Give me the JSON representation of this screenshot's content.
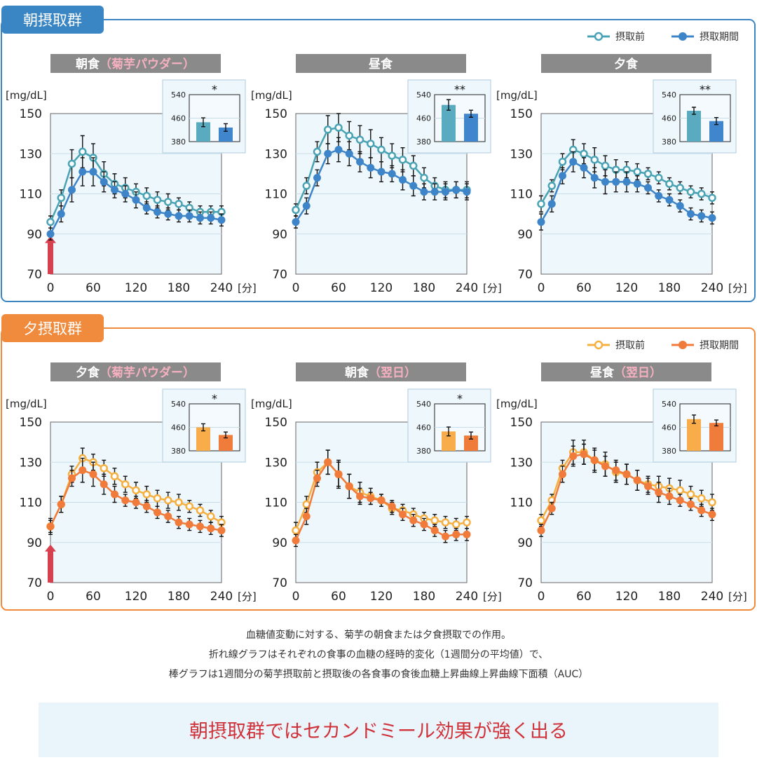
{
  "groups": [
    {
      "label": "朝摂取群",
      "color": "#3a86c4",
      "legend": {
        "before": "摂取前",
        "after": "摂取期間"
      },
      "colors": {
        "before": "#4aa3b4",
        "after": "#3d85c8",
        "bar_before": "#5aaac0",
        "bar_after": "#3f86cc"
      }
    },
    {
      "label": "夕摂取群",
      "color": "#f08a3c",
      "legend": {
        "before": "摂取前",
        "after": "摂取期間"
      },
      "colors": {
        "before": "#f5b041",
        "after": "#f07b3a",
        "bar_before": "#f9ad4a",
        "bar_after": "#f07c3c"
      }
    }
  ],
  "chart_data": [
    {
      "type": "line",
      "group": 0,
      "title": "朝食",
      "title_note": "（菊芋パウダー）",
      "intake_arrow": true,
      "ylabel": "[mg/dL]",
      "xunit": "[分]",
      "ylim": [
        70,
        150
      ],
      "yticks": [
        70,
        90,
        110,
        130,
        150
      ],
      "xlim": [
        0,
        240
      ],
      "xticks": [
        0,
        60,
        120,
        180,
        240
      ],
      "x": [
        0,
        15,
        30,
        45,
        60,
        75,
        90,
        105,
        120,
        135,
        150,
        165,
        180,
        195,
        210,
        225,
        240
      ],
      "series": [
        {
          "name": "摂取前",
          "values": [
            96,
            108,
            125,
            131,
            128,
            120,
            115,
            113,
            111,
            109,
            107,
            106,
            105,
            103,
            101,
            101,
            101
          ],
          "error": [
            3,
            4,
            7,
            8,
            7,
            6,
            5,
            5,
            4,
            4,
            4,
            4,
            3,
            3,
            3,
            3,
            3
          ]
        },
        {
          "name": "摂取期間",
          "values": [
            90,
            100,
            112,
            121,
            121,
            116,
            112,
            110,
            107,
            103,
            101,
            100,
            99,
            99,
            98,
            98,
            97
          ],
          "error": [
            3,
            4,
            6,
            7,
            7,
            5,
            4,
            4,
            4,
            3,
            3,
            3,
            3,
            3,
            3,
            3,
            3
          ]
        }
      ],
      "auc": {
        "yticks": [
          380,
          460,
          540
        ],
        "ylim": [
          380,
          540
        ],
        "values": [
          446,
          428
        ],
        "error": [
          15,
          13
        ],
        "significance": "*"
      }
    },
    {
      "type": "line",
      "group": 0,
      "title": "昼食",
      "title_note": "",
      "intake_arrow": false,
      "ylabel": "[mg/dL]",
      "xunit": "[分]",
      "ylim": [
        70,
        150
      ],
      "yticks": [
        70,
        90,
        110,
        130,
        150
      ],
      "xlim": [
        0,
        240
      ],
      "xticks": [
        0,
        60,
        120,
        180,
        240
      ],
      "x": [
        0,
        15,
        30,
        45,
        60,
        75,
        90,
        105,
        120,
        135,
        150,
        165,
        180,
        195,
        210,
        225,
        240
      ],
      "series": [
        {
          "name": "摂取前",
          "values": [
            102,
            114,
            131,
            142,
            143,
            139,
            137,
            135,
            132,
            129,
            127,
            124,
            118,
            114,
            112,
            112,
            112
          ],
          "error": [
            3,
            4,
            5,
            7,
            7,
            7,
            7,
            7,
            6,
            6,
            6,
            5,
            5,
            4,
            4,
            4,
            4
          ]
        },
        {
          "name": "摂取期間",
          "values": [
            96,
            104,
            118,
            130,
            132,
            130,
            126,
            123,
            121,
            120,
            117,
            114,
            111,
            111,
            111,
            112,
            111
          ],
          "error": [
            3,
            4,
            4,
            5,
            6,
            6,
            5,
            5,
            5,
            4,
            5,
            5,
            4,
            4,
            4,
            4,
            4
          ]
        }
      ],
      "auc": {
        "yticks": [
          380,
          460,
          540
        ],
        "ylim": [
          380,
          540
        ],
        "values": [
          505,
          475
        ],
        "error": [
          18,
          12
        ],
        "significance": "**"
      }
    },
    {
      "type": "line",
      "group": 0,
      "title": "夕食",
      "title_note": "",
      "intake_arrow": false,
      "ylabel": "[mg/dL]",
      "xunit": "[分]",
      "ylim": [
        70,
        150
      ],
      "yticks": [
        70,
        90,
        110,
        130,
        150
      ],
      "xlim": [
        0,
        240
      ],
      "xticks": [
        0,
        60,
        120,
        180,
        240
      ],
      "x": [
        0,
        15,
        30,
        45,
        60,
        75,
        90,
        105,
        120,
        135,
        150,
        165,
        180,
        195,
        210,
        225,
        240
      ],
      "series": [
        {
          "name": "摂取前",
          "values": [
            105,
            114,
            126,
            132,
            130,
            127,
            124,
            122,
            122,
            121,
            120,
            118,
            115,
            113,
            111,
            110,
            108
          ],
          "error": [
            4,
            3,
            4,
            5,
            5,
            6,
            5,
            5,
            4,
            4,
            3,
            3,
            3,
            3,
            3,
            3,
            3
          ]
        },
        {
          "name": "摂取期間",
          "values": [
            96,
            105,
            119,
            126,
            123,
            118,
            116,
            116,
            116,
            115,
            113,
            109,
            107,
            104,
            100,
            99,
            98
          ],
          "error": [
            4,
            4,
            4,
            5,
            5,
            5,
            6,
            5,
            5,
            4,
            3,
            3,
            3,
            3,
            3,
            3,
            3
          ]
        }
      ],
      "auc": {
        "yticks": [
          380,
          460,
          540
        ],
        "ylim": [
          380,
          540
        ],
        "values": [
          485,
          450
        ],
        "error": [
          12,
          12
        ],
        "significance": "**"
      }
    },
    {
      "type": "line",
      "group": 1,
      "title": "夕食",
      "title_note": "（菊芋パウダー）",
      "intake_arrow": true,
      "ylabel": "[mg/dL]",
      "xunit": "[分]",
      "ylim": [
        70,
        150
      ],
      "yticks": [
        70,
        90,
        110,
        130,
        150
      ],
      "xlim": [
        0,
        240
      ],
      "xticks": [
        0,
        60,
        120,
        180,
        240
      ],
      "x": [
        0,
        15,
        30,
        45,
        60,
        75,
        90,
        105,
        120,
        135,
        150,
        165,
        180,
        195,
        210,
        225,
        240
      ],
      "series": [
        {
          "name": "摂取前",
          "values": [
            98,
            109,
            124,
            132,
            130,
            127,
            123,
            119,
            116,
            114,
            112,
            111,
            110,
            108,
            106,
            103,
            100
          ],
          "error": [
            4,
            4,
            4,
            5,
            4,
            4,
            4,
            4,
            4,
            4,
            4,
            4,
            4,
            3,
            3,
            3,
            3
          ]
        },
        {
          "name": "摂取期間",
          "values": [
            98,
            109,
            122,
            126,
            124,
            119,
            114,
            111,
            110,
            108,
            105,
            103,
            100,
            99,
            98,
            97,
            96
          ],
          "error": [
            3,
            4,
            4,
            6,
            6,
            5,
            4,
            3,
            3,
            3,
            3,
            3,
            3,
            3,
            3,
            3,
            3
          ]
        }
      ],
      "auc": {
        "yticks": [
          380,
          460,
          540
        ],
        "ylim": [
          380,
          540
        ],
        "values": [
          460,
          434
        ],
        "error": [
          12,
          10
        ],
        "significance": "*"
      }
    },
    {
      "type": "line",
      "group": 1,
      "title": "朝食",
      "title_note": "（翌日）",
      "intake_arrow": false,
      "ylabel": "[mg/dL]",
      "xunit": "[分]",
      "ylim": [
        70,
        150
      ],
      "yticks": [
        70,
        90,
        110,
        130,
        150
      ],
      "xlim": [
        0,
        240
      ],
      "xticks": [
        0,
        60,
        120,
        180,
        240
      ],
      "x": [
        0,
        15,
        30,
        45,
        60,
        75,
        90,
        105,
        120,
        135,
        150,
        165,
        180,
        195,
        210,
        225,
        240
      ],
      "series": [
        {
          "name": "摂取前",
          "values": [
            96,
            109,
            125,
            130,
            124,
            118,
            115,
            113,
            111,
            107,
            106,
            104,
            102,
            101,
            100,
            99,
            100
          ],
          "error": [
            4,
            4,
            5,
            6,
            6,
            6,
            5,
            4,
            3,
            3,
            3,
            3,
            3,
            3,
            3,
            3,
            3
          ]
        },
        {
          "name": "摂取期間",
          "values": [
            91,
            103,
            122,
            130,
            124,
            118,
            113,
            112,
            111,
            108,
            104,
            101,
            99,
            96,
            93,
            94,
            94
          ],
          "error": [
            3,
            4,
            4,
            6,
            7,
            6,
            4,
            3,
            3,
            3,
            3,
            3,
            3,
            3,
            3,
            3,
            3
          ]
        }
      ],
      "auc": {
        "yticks": [
          380,
          460,
          540
        ],
        "ylim": [
          380,
          540
        ],
        "values": [
          446,
          432
        ],
        "error": [
          15,
          12
        ],
        "significance": "*"
      }
    },
    {
      "type": "line",
      "group": 1,
      "title": "昼食",
      "title_note": "（翌日）",
      "intake_arrow": false,
      "ylabel": "[mg/dL]",
      "xunit": "[分]",
      "ylim": [
        70,
        150
      ],
      "yticks": [
        70,
        90,
        110,
        130,
        150
      ],
      "xlim": [
        0,
        240
      ],
      "xticks": [
        0,
        60,
        120,
        180,
        240
      ],
      "x": [
        0,
        15,
        30,
        45,
        60,
        75,
        90,
        105,
        120,
        135,
        150,
        165,
        180,
        195,
        210,
        225,
        240
      ],
      "series": [
        {
          "name": "摂取前",
          "values": [
            101,
            111,
            127,
            135,
            135,
            131,
            129,
            125,
            124,
            121,
            119,
            118,
            117,
            116,
            114,
            112,
            110
          ],
          "error": [
            3,
            3,
            4,
            6,
            6,
            6,
            6,
            5,
            5,
            5,
            4,
            5,
            5,
            5,
            4,
            4,
            4
          ]
        },
        {
          "name": "摂取期間",
          "values": [
            96,
            107,
            124,
            133,
            134,
            131,
            128,
            126,
            124,
            121,
            118,
            115,
            113,
            111,
            109,
            106,
            104
          ],
          "error": [
            3,
            3,
            4,
            5,
            5,
            5,
            5,
            5,
            5,
            5,
            4,
            5,
            4,
            3,
            3,
            3,
            3
          ]
        }
      ],
      "auc": {
        "yticks": [
          380,
          460,
          540
        ],
        "ylim": [
          380,
          540
        ],
        "values": [
          488,
          475
        ],
        "error": [
          14,
          10
        ],
        "significance": ""
      }
    }
  ],
  "caption": [
    "血糖値変動に対する、菊芋の朝食または夕食摂取での作用。",
    "折れ線グラフはそれぞれの食事の血糖の経時的変化（1週間分の平均値）で、",
    "棒グラフは1週間分の菊芋摂取前と摂取後の各食事の食後血糖上昇曲線上昇曲線下面積（AUC）"
  ],
  "conclusion": "朝摂取群ではセカンドミール効果が強く出る",
  "conclusion_color": "#d0323a",
  "arrow_color": "#d6404f",
  "title_note_color": "#f6b0c0"
}
